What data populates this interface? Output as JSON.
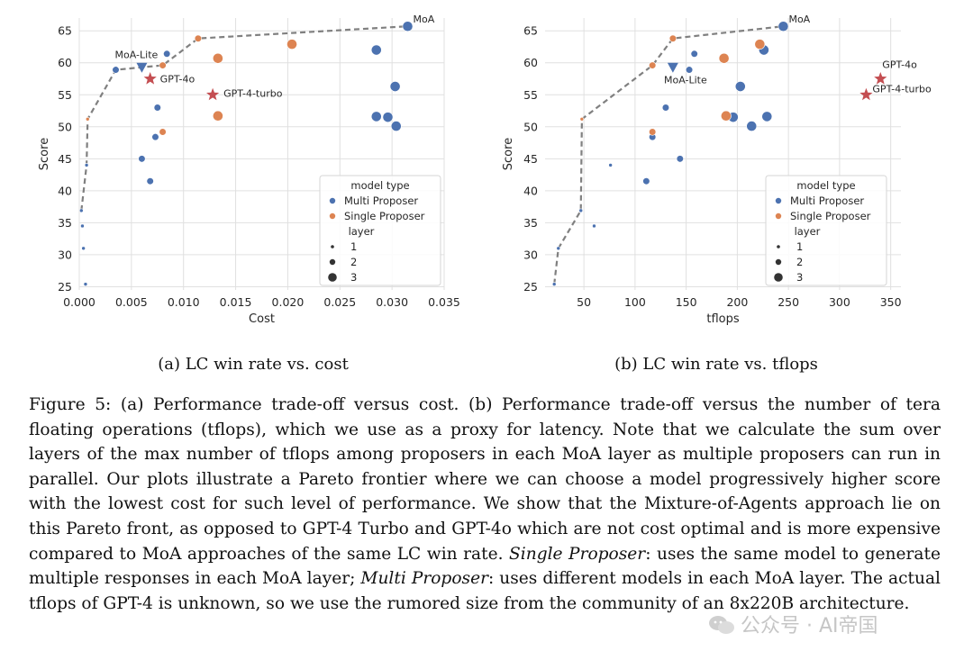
{
  "colors": {
    "multi": "#4c72b0",
    "single": "#dd8452",
    "gpt": "#c44e52",
    "frontier": "#808080",
    "grid": "#e0e0e0",
    "axis_text": "#262626"
  },
  "subcaptions": {
    "a": "(a) LC win rate vs. cost",
    "b": "(b) LC win rate vs. tflops"
  },
  "caption": {
    "p1": "Figure 5: (a) Performance trade-off versus cost. (b) Performance trade-off versus the number of tera floating operations (tflops), which we use as a proxy for latency. Note that we calculate the sum over layers of the max number of tflops among proposers in each MoA layer as multiple proposers can run in parallel. Our plots illustrate a Pareto frontier where we can choose a model progressively higher score with the lowest cost for such level of performance. We show that the Mixture-of-Agents approach lie on this Pareto front, as opposed to GPT-4 Turbo and GPT-4o which are not cost optimal and is more expensive compared to MoA approaches of the same LC win rate.",
    "single_term": "Single Proposer",
    "p2": ": uses the same model to generate multiple responses in each MoA layer;",
    "multi_term": "Multi Proposer",
    "p3": ": uses different models in each MoA layer. The actual tflops of GPT-4 is unknown, so we use the rumored size from the community of an 8x220B architecture."
  },
  "watermark": "公众号 · AI帝国",
  "chart_data": [
    {
      "type": "scatter",
      "title": "(a) LC win rate vs. cost",
      "xlabel": "Cost",
      "ylabel": "Score",
      "xlim": [
        0,
        0.035
      ],
      "ylim": [
        24.5,
        67
      ],
      "xticks": [
        0.0,
        0.005,
        0.01,
        0.015,
        0.02,
        0.025,
        0.03,
        0.035
      ],
      "xtick_labels": [
        "0.000",
        "0.005",
        "0.010",
        "0.015",
        "0.020",
        "0.025",
        "0.030",
        "0.035"
      ],
      "yticks": [
        25,
        30,
        35,
        40,
        45,
        50,
        55,
        60,
        65
      ],
      "grid": true,
      "legend": {
        "placement": "bottom-right",
        "type_title": "model type",
        "type_entries": [
          "Multi Proposer",
          "Single Proposer"
        ],
        "layer_title": "layer",
        "layer_entries": [
          "1",
          "2",
          "3"
        ]
      },
      "multi_proposer": [
        {
          "x": 0.0002,
          "y": 36.9,
          "layer": 1
        },
        {
          "x": 0.0003,
          "y": 34.5,
          "layer": 1
        },
        {
          "x": 0.0004,
          "y": 31.0,
          "layer": 1
        },
        {
          "x": 0.0006,
          "y": 25.4,
          "layer": 1
        },
        {
          "x": 0.0007,
          "y": 44.0,
          "layer": 1
        },
        {
          "x": 0.0035,
          "y": 58.9,
          "layer": 2
        },
        {
          "x": 0.006,
          "y": 45.0,
          "layer": 2
        },
        {
          "x": 0.0068,
          "y": 41.5,
          "layer": 2
        },
        {
          "x": 0.0073,
          "y": 48.4,
          "layer": 2
        },
        {
          "x": 0.0075,
          "y": 53.0,
          "layer": 2
        },
        {
          "x": 0.0084,
          "y": 61.4,
          "layer": 2
        },
        {
          "x": 0.0285,
          "y": 62.0,
          "layer": 3
        },
        {
          "x": 0.0285,
          "y": 51.6,
          "layer": 3
        },
        {
          "x": 0.0296,
          "y": 51.5,
          "layer": 3
        },
        {
          "x": 0.0303,
          "y": 56.3,
          "layer": 3
        },
        {
          "x": 0.0304,
          "y": 50.1,
          "layer": 3
        },
        {
          "x": 0.0315,
          "y": 65.7,
          "layer": 3
        }
      ],
      "single_proposer": [
        {
          "x": 0.0008,
          "y": 51.2,
          "layer": 1
        },
        {
          "x": 0.008,
          "y": 59.6,
          "layer": 2
        },
        {
          "x": 0.008,
          "y": 49.2,
          "layer": 2
        },
        {
          "x": 0.0114,
          "y": 63.8,
          "layer": 2
        },
        {
          "x": 0.0133,
          "y": 60.7,
          "layer": 3
        },
        {
          "x": 0.0133,
          "y": 51.7,
          "layer": 3
        },
        {
          "x": 0.0204,
          "y": 62.9,
          "layer": 3
        }
      ],
      "moa_lite": {
        "x": 0.006,
        "y": 59.3,
        "label": "MoA-Lite"
      },
      "moa_label": {
        "x": 0.0315,
        "y": 65.7,
        "text": "MoA"
      },
      "gpt_models": [
        {
          "name": "GPT-4o",
          "x": 0.0068,
          "y": 57.5
        },
        {
          "name": "GPT-4-turbo",
          "x": 0.0128,
          "y": 55.0
        }
      ],
      "pareto_frontier": [
        {
          "x": 0.0002,
          "y": 36.9
        },
        {
          "x": 0.0007,
          "y": 44.0
        },
        {
          "x": 0.0008,
          "y": 51.2
        },
        {
          "x": 0.0035,
          "y": 58.9
        },
        {
          "x": 0.006,
          "y": 59.3
        },
        {
          "x": 0.008,
          "y": 59.6
        },
        {
          "x": 0.0114,
          "y": 63.8
        },
        {
          "x": 0.0315,
          "y": 65.7
        }
      ]
    },
    {
      "type": "scatter",
      "title": "(b) LC win rate vs. tflops",
      "xlabel": "tflops",
      "ylabel": "Score",
      "xlim": [
        12,
        360
      ],
      "ylim": [
        24.5,
        67
      ],
      "xticks": [
        50,
        100,
        150,
        200,
        250,
        300,
        350
      ],
      "xtick_labels": [
        "50",
        "100",
        "150",
        "200",
        "250",
        "300",
        "350"
      ],
      "yticks": [
        25,
        30,
        35,
        40,
        45,
        50,
        55,
        60,
        65
      ],
      "grid": true,
      "legend": {
        "placement": "bottom-right",
        "type_title": "model type",
        "type_entries": [
          "Multi Proposer",
          "Single Proposer"
        ],
        "layer_title": "layer",
        "layer_entries": [
          "1",
          "2",
          "3"
        ]
      },
      "multi_proposer": [
        {
          "x": 21,
          "y": 25.4,
          "layer": 1
        },
        {
          "x": 25,
          "y": 31.0,
          "layer": 1
        },
        {
          "x": 47,
          "y": 36.9,
          "layer": 1
        },
        {
          "x": 60,
          "y": 34.5,
          "layer": 1
        },
        {
          "x": 76,
          "y": 44.0,
          "layer": 1
        },
        {
          "x": 111,
          "y": 41.5,
          "layer": 2
        },
        {
          "x": 117,
          "y": 48.4,
          "layer": 2
        },
        {
          "x": 130,
          "y": 53.0,
          "layer": 2
        },
        {
          "x": 144,
          "y": 45.0,
          "layer": 2
        },
        {
          "x": 153,
          "y": 58.9,
          "layer": 2
        },
        {
          "x": 158,
          "y": 61.4,
          "layer": 2
        },
        {
          "x": 196,
          "y": 51.5,
          "layer": 3
        },
        {
          "x": 203,
          "y": 56.3,
          "layer": 3
        },
        {
          "x": 214,
          "y": 50.1,
          "layer": 3
        },
        {
          "x": 226,
          "y": 62.0,
          "layer": 3
        },
        {
          "x": 229,
          "y": 51.6,
          "layer": 3
        },
        {
          "x": 245,
          "y": 65.7,
          "layer": 3
        }
      ],
      "single_proposer": [
        {
          "x": 48,
          "y": 51.2,
          "layer": 1
        },
        {
          "x": 117,
          "y": 59.6,
          "layer": 2
        },
        {
          "x": 117,
          "y": 49.2,
          "layer": 2
        },
        {
          "x": 137,
          "y": 63.8,
          "layer": 2
        },
        {
          "x": 187,
          "y": 60.7,
          "layer": 3
        },
        {
          "x": 189,
          "y": 51.7,
          "layer": 3
        },
        {
          "x": 222,
          "y": 62.9,
          "layer": 3
        }
      ],
      "moa_lite": {
        "x": 137,
        "y": 59.3,
        "label": "MoA-Lite"
      },
      "moa_label": {
        "x": 245,
        "y": 65.7,
        "text": "MoA"
      },
      "gpt_models": [
        {
          "name": "GPT-4o",
          "x": 340,
          "y": 57.5
        },
        {
          "name": "GPT-4-turbo",
          "x": 326,
          "y": 55.0
        }
      ],
      "pareto_frontier": [
        {
          "x": 21,
          "y": 25.4
        },
        {
          "x": 25,
          "y": 31.0
        },
        {
          "x": 47,
          "y": 36.9
        },
        {
          "x": 48,
          "y": 51.2
        },
        {
          "x": 117,
          "y": 59.6
        },
        {
          "x": 137,
          "y": 63.8
        },
        {
          "x": 245,
          "y": 65.7
        }
      ]
    }
  ]
}
